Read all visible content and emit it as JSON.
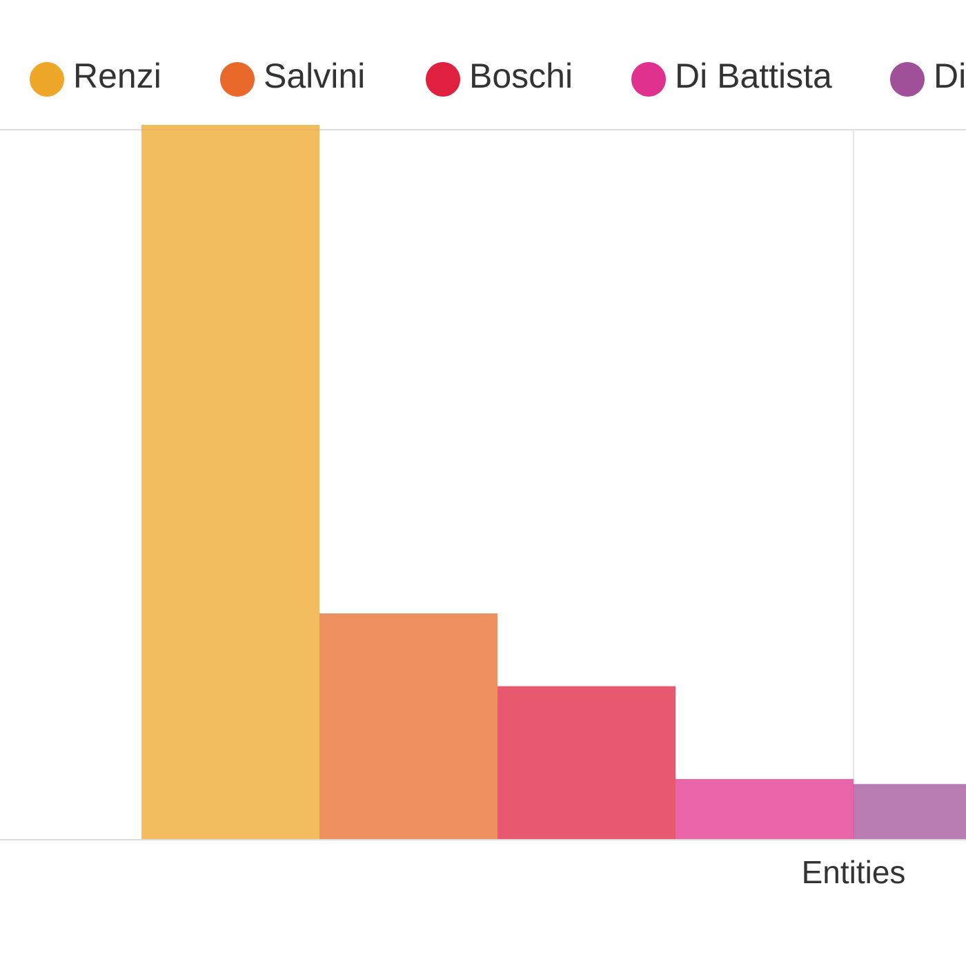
{
  "chart_data": {
    "type": "bar",
    "x_label": "Entities",
    "series": [
      {
        "name": "Renzi",
        "color": "#efa72a",
        "values": [
          100
        ]
      },
      {
        "name": "Salvini",
        "color": "#e8692a",
        "values": [
          31.6
        ]
      },
      {
        "name": "Boschi",
        "color": "#e0203f",
        "values": [
          21.4
        ]
      },
      {
        "name": "Di Battista",
        "color": "#e0318e",
        "values": [
          8.4
        ]
      },
      {
        "name": "Di",
        "color": "#a05098",
        "values": [
          7.7
        ]
      }
    ],
    "ylim": [
      0,
      100
    ]
  }
}
